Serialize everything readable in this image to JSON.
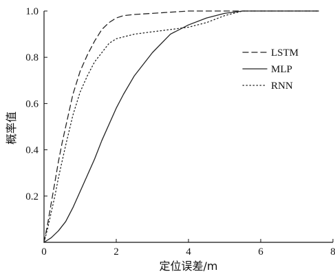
{
  "chart_data": {
    "type": "line",
    "title": "",
    "xlabel": "定位误差/m",
    "ylabel": "概率值",
    "xlim": [
      0,
      8
    ],
    "ylim": [
      0,
      1
    ],
    "xticks": [
      "0",
      "2",
      "4",
      "6",
      "8"
    ],
    "yticks": [
      "0.2",
      "0.4",
      "0.6",
      "0.8",
      "1.0"
    ],
    "grid": false,
    "legend_position": "right",
    "series": [
      {
        "name": "LSTM",
        "style": "dashed",
        "color": "#222222",
        "x": [
          0,
          0.1,
          0.2,
          0.3,
          0.4,
          0.5,
          0.6,
          0.8,
          1.0,
          1.2,
          1.4,
          1.6,
          1.8,
          2.0,
          2.2,
          2.5,
          3.0,
          3.5,
          4.0,
          4.5,
          5.0,
          5.5,
          6.0,
          7.0,
          7.6
        ],
        "y": [
          0,
          0.08,
          0.17,
          0.26,
          0.35,
          0.43,
          0.5,
          0.64,
          0.74,
          0.81,
          0.87,
          0.92,
          0.95,
          0.97,
          0.98,
          0.985,
          0.99,
          0.995,
          1.0,
          1.0,
          1.0,
          1.0,
          1.0,
          1.0,
          1.0
        ]
      },
      {
        "name": "MLP",
        "style": "solid",
        "color": "#222222",
        "x": [
          0,
          0.2,
          0.4,
          0.6,
          0.8,
          1.0,
          1.2,
          1.4,
          1.6,
          1.8,
          2.0,
          2.2,
          2.5,
          3.0,
          3.5,
          4.0,
          4.5,
          5.0,
          5.5,
          6.0,
          7.0,
          7.6
        ],
        "y": [
          0,
          0.02,
          0.05,
          0.09,
          0.15,
          0.22,
          0.29,
          0.36,
          0.44,
          0.51,
          0.58,
          0.64,
          0.72,
          0.82,
          0.9,
          0.94,
          0.97,
          0.99,
          1.0,
          1.0,
          1.0,
          1.0
        ]
      },
      {
        "name": "RNN",
        "style": "dotted",
        "color": "#222222",
        "x": [
          0,
          0.1,
          0.2,
          0.3,
          0.4,
          0.6,
          0.8,
          1.0,
          1.2,
          1.4,
          1.6,
          1.8,
          2.0,
          2.5,
          3.0,
          3.5,
          4.0,
          4.5,
          5.0,
          5.5,
          6.0,
          7.0,
          7.6
        ],
        "y": [
          0,
          0.06,
          0.13,
          0.2,
          0.28,
          0.42,
          0.55,
          0.65,
          0.72,
          0.78,
          0.82,
          0.86,
          0.88,
          0.9,
          0.91,
          0.92,
          0.93,
          0.95,
          0.98,
          1.0,
          1.0,
          1.0,
          1.0
        ]
      }
    ]
  }
}
